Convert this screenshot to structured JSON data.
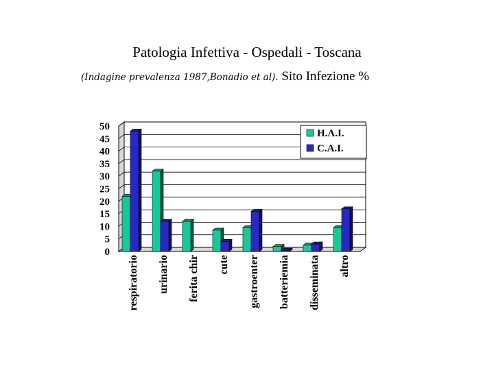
{
  "slide": {
    "title": "Patologia Infettiva - Ospedali - Toscana",
    "subtitle_italic": "(Indagine prevalenza 1987,Bonadio et al).",
    "subtitle_plain": " Sito Infezione %"
  },
  "chart_data": {
    "type": "bar",
    "style": "3d",
    "categories": [
      "respiratorio",
      "urinario",
      "ferita chir",
      "cute",
      "gastroenter",
      "batteriemia",
      "disseminata",
      "altro"
    ],
    "series": [
      {
        "name": "H.A.I.",
        "color": "#19c89a",
        "values": [
          22,
          32,
          12,
          8.5,
          9.5,
          2,
          2.5,
          9.5
        ]
      },
      {
        "name": "C.A.I.",
        "color": "#2828c8",
        "values": [
          48,
          12,
          null,
          4,
          16,
          0.5,
          3,
          17
        ]
      }
    ],
    "yticks": [
      0,
      5,
      10,
      15,
      20,
      25,
      30,
      35,
      40,
      45,
      50
    ],
    "ylim": [
      0,
      50
    ],
    "grid": true,
    "legend_position": "top-right"
  }
}
